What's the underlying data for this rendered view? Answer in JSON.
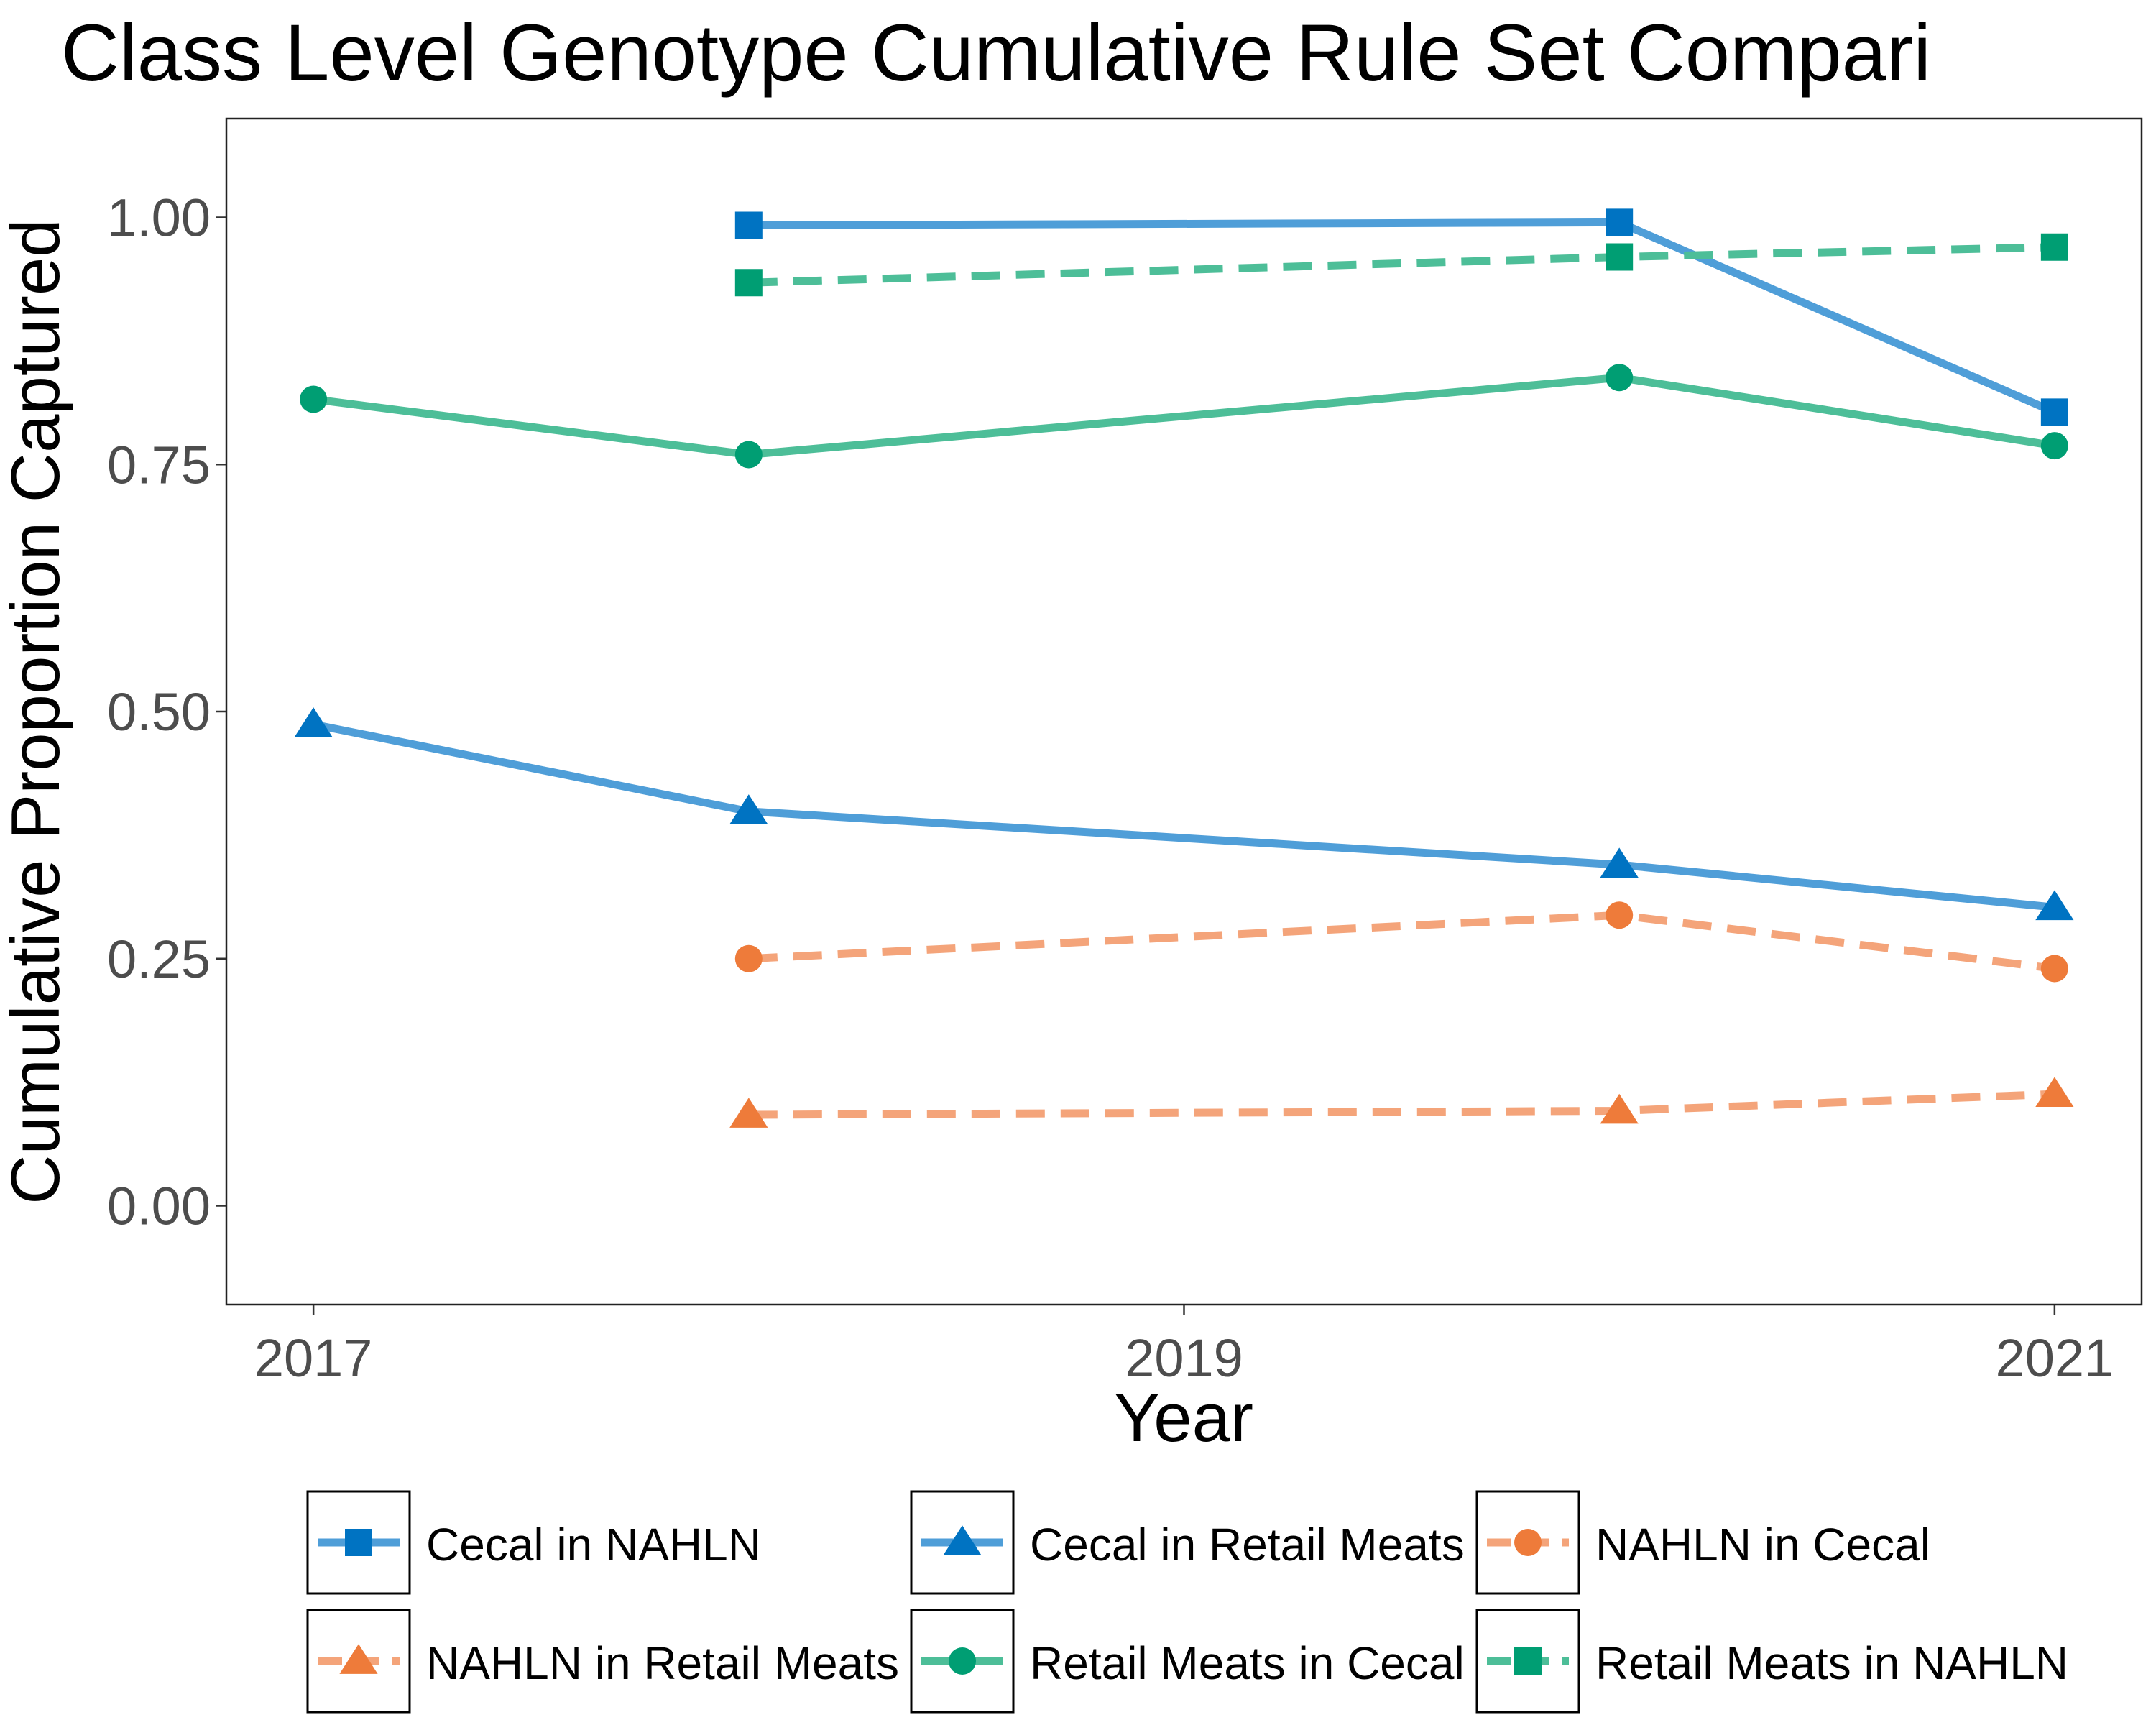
{
  "chart_data": {
    "type": "line",
    "title": "Class Level Genotype Cumulative Rule Set Compari",
    "xlabel": "Year",
    "ylabel": "Cumulative Proportion Captured",
    "xlim": [
      2016.8,
      2021.2
    ],
    "ylim": [
      -0.1,
      1.1
    ],
    "x_ticks": [
      2017,
      2019,
      2021
    ],
    "x_tick_labels": [
      "2017",
      "2019",
      "2021"
    ],
    "y_ticks": [
      0,
      0.25,
      0.5,
      0.75,
      1.0
    ],
    "y_tick_labels": [
      "0.00",
      "0.25",
      "0.50",
      "0.75",
      "1.00"
    ],
    "grid": false,
    "legend_position": "bottom",
    "series": [
      {
        "name": "Cecal in NAHLN",
        "color": "#0073C2",
        "line_color": "#4F9ED8",
        "dash": "solid",
        "marker": "square",
        "points": [
          [
            2018,
            0.992
          ],
          [
            2020,
            0.995
          ],
          [
            2021,
            0.803
          ]
        ]
      },
      {
        "name": "Cecal in Retail Meats",
        "color": "#0073C2",
        "line_color": "#4F9ED8",
        "dash": "solid",
        "marker": "triangle",
        "points": [
          [
            2017,
            0.487
          ],
          [
            2018,
            0.399
          ],
          [
            2020,
            0.345
          ],
          [
            2021,
            0.302
          ]
        ]
      },
      {
        "name": "NAHLN in Cecal",
        "color": "#EE7B3A",
        "line_color": "#F4A47A",
        "dash": "dashed",
        "marker": "circle",
        "points": [
          [
            2018,
            0.25
          ],
          [
            2020,
            0.294
          ],
          [
            2021,
            0.24
          ]
        ]
      },
      {
        "name": "NAHLN in Retail Meats",
        "color": "#EE7B3A",
        "line_color": "#F4A47A",
        "dash": "dashed",
        "marker": "triangle",
        "points": [
          [
            2018,
            0.092
          ],
          [
            2020,
            0.096
          ],
          [
            2021,
            0.113
          ]
        ]
      },
      {
        "name": "Retail Meats in Cecal",
        "color": "#009E73",
        "line_color": "#4DBE98",
        "dash": "solid",
        "marker": "circle",
        "points": [
          [
            2017,
            0.816
          ],
          [
            2018,
            0.76
          ],
          [
            2020,
            0.838
          ],
          [
            2021,
            0.769
          ]
        ]
      },
      {
        "name": "Retail Meats in NAHLN",
        "color": "#009E73",
        "line_color": "#4DBE98",
        "dash": "dashed",
        "marker": "square",
        "points": [
          [
            2018,
            0.934
          ],
          [
            2020,
            0.96
          ],
          [
            2021,
            0.97
          ]
        ]
      }
    ]
  }
}
